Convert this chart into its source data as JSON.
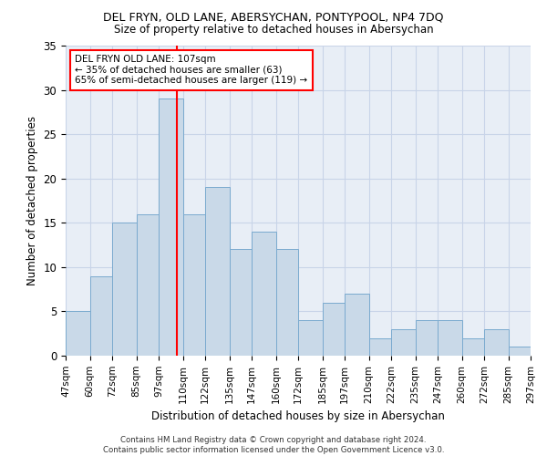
{
  "title1": "DEL FRYN, OLD LANE, ABERSYCHAN, PONTYPOOL, NP4 7DQ",
  "title2": "Size of property relative to detached houses in Abersychan",
  "xlabel": "Distribution of detached houses by size in Abersychan",
  "ylabel": "Number of detached properties",
  "bin_labels": [
    "47sqm",
    "60sqm",
    "72sqm",
    "85sqm",
    "97sqm",
    "110sqm",
    "122sqm",
    "135sqm",
    "147sqm",
    "160sqm",
    "172sqm",
    "185sqm",
    "197sqm",
    "210sqm",
    "222sqm",
    "235sqm",
    "247sqm",
    "260sqm",
    "272sqm",
    "285sqm",
    "297sqm"
  ],
  "bin_edges": [
    47,
    60,
    72,
    85,
    97,
    110,
    122,
    135,
    147,
    160,
    172,
    185,
    197,
    210,
    222,
    235,
    247,
    260,
    272,
    285,
    297
  ],
  "bar_heights": [
    5,
    9,
    15,
    16,
    29,
    16,
    19,
    12,
    14,
    12,
    4,
    6,
    7,
    2,
    3,
    4,
    4,
    2,
    3,
    1
  ],
  "bar_color": "#c9d9e8",
  "bar_edge_color": "#7aaacf",
  "property_line_x": 107,
  "annotation_text": "DEL FRYN OLD LANE: 107sqm\n← 35% of detached houses are smaller (63)\n65% of semi-detached houses are larger (119) →",
  "annotation_box_color": "white",
  "annotation_box_edge_color": "red",
  "vline_color": "red",
  "ylim": [
    0,
    35
  ],
  "yticks": [
    0,
    5,
    10,
    15,
    20,
    25,
    30,
    35
  ],
  "footnote": "Contains HM Land Registry data © Crown copyright and database right 2024.\nContains public sector information licensed under the Open Government Licence v3.0.",
  "grid_color": "#c8d4e8",
  "bg_color": "#e8eef6"
}
